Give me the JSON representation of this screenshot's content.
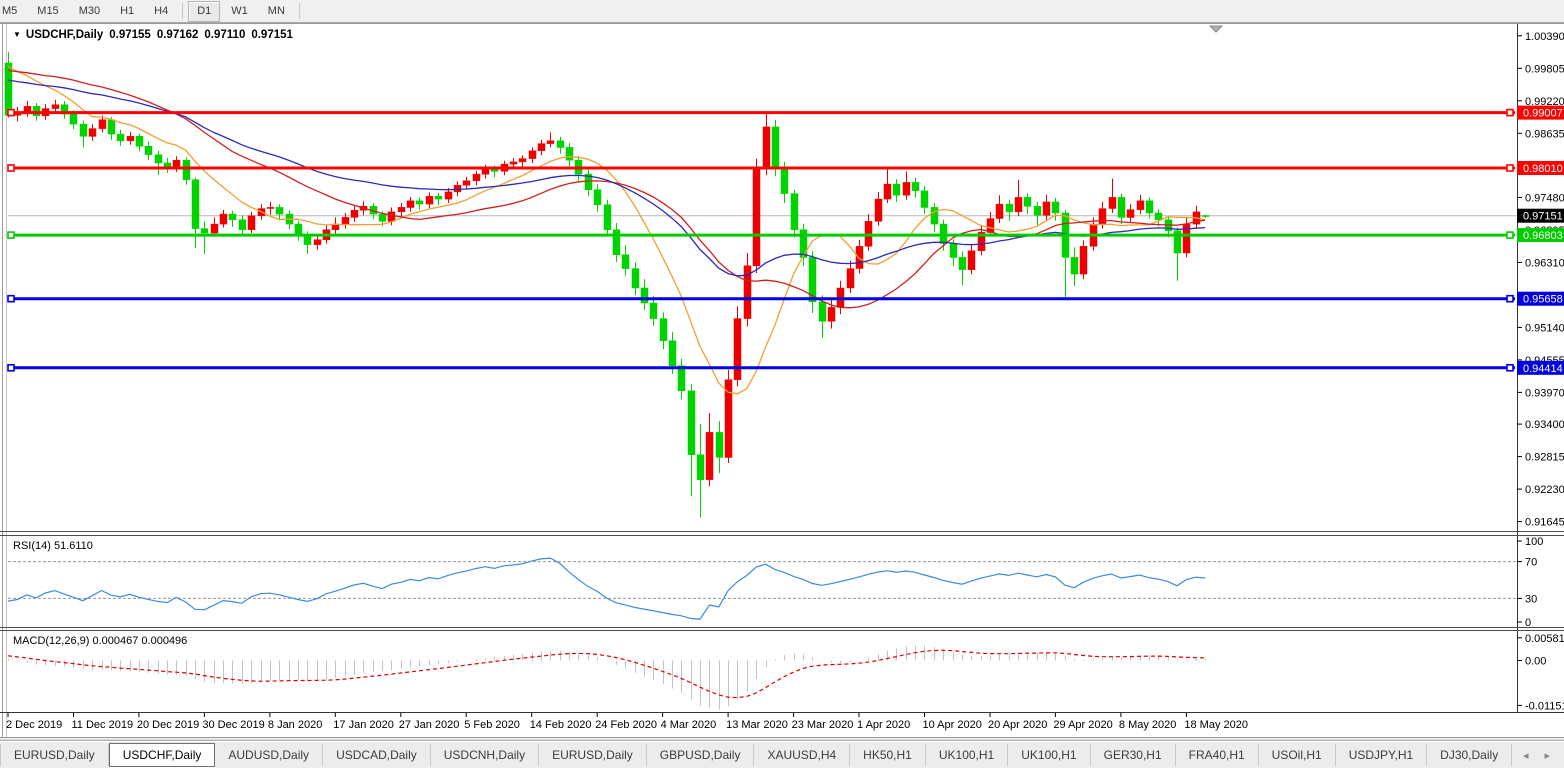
{
  "toolbar": {
    "timeframes": [
      "M5",
      "M15",
      "M30",
      "H1",
      "H4",
      "D1",
      "W1",
      "MN"
    ],
    "active": "D1"
  },
  "chart": {
    "title": {
      "symbol": "USDCHF,Daily",
      "open": "0.97155",
      "high": "0.97162",
      "low": "0.97110",
      "close": "0.97151"
    },
    "price_axis_ticks": [
      {
        "label": "1.00390",
        "price": 1.0039
      },
      {
        "label": "0.99805",
        "price": 0.99805
      },
      {
        "label": "0.99220",
        "price": 0.9922
      },
      {
        "label": "0.98635",
        "price": 0.98635
      },
      {
        "label": "0.97480",
        "price": 0.9748
      },
      {
        "label": "0.96895",
        "price": 0.96895
      },
      {
        "label": "0.96310",
        "price": 0.9631
      },
      {
        "label": "0.95140",
        "price": 0.9514
      },
      {
        "label": "0.94555",
        "price": 0.94555
      },
      {
        "label": "0.93970",
        "price": 0.9397
      },
      {
        "label": "0.93400",
        "price": 0.934
      },
      {
        "label": "0.92815",
        "price": 0.92815
      },
      {
        "label": "0.92230",
        "price": 0.9223
      },
      {
        "label": "0.91645",
        "price": 0.91645
      }
    ],
    "hlines": [
      {
        "label": "0.99007",
        "price": 0.99007,
        "color": "#fe0000"
      },
      {
        "label": "0.98010",
        "price": 0.9801,
        "color": "#fe0000"
      },
      {
        "label": "0.96803",
        "price": 0.96803,
        "color": "#00cc00"
      },
      {
        "label": "0.95658",
        "price": 0.95658,
        "color": "#0000e0"
      },
      {
        "label": "0.94414",
        "price": 0.94414,
        "color": "#0000e0"
      }
    ],
    "current_price": {
      "label": "0.97151",
      "price": 0.97151,
      "line_color": "#b8b8b8",
      "box_color": "#000000"
    }
  },
  "rsi": {
    "label": "RSI(14) 51.6110",
    "axis_labels": [
      "100",
      "70",
      "30",
      "0"
    ],
    "levels": [
      70,
      30
    ],
    "line_color": "#3c8bd9"
  },
  "macd": {
    "label": "MACD(12,26,9) 0.000467 0.000496",
    "axis": [
      {
        "label": "0.005818",
        "value": 0.005818
      },
      {
        "label": "0.00",
        "value": 0
      },
      {
        "label": "-0.011514",
        "value": -0.011514
      }
    ],
    "histogram_color": "#c2c2c2",
    "signal_color": "#e00000"
  },
  "date_axis": {
    "labels": [
      "2 Dec 2019",
      "11 Dec 2019",
      "20 Dec 2019",
      "30 Dec 2019",
      "8 Jan 2020",
      "17 Jan 2020",
      "27 Jan 2020",
      "5 Feb 2020",
      "14 Feb 2020",
      "24 Feb 2020",
      "4 Mar 2020",
      "13 Mar 2020",
      "23 Mar 2020",
      "1 Apr 2020",
      "10 Apr 2020",
      "20 Apr 2020",
      "29 Apr 2020",
      "8 May 2020",
      "18 May 2020"
    ],
    "candle_step": 7
  },
  "tabs": {
    "items": [
      "EURUSD,Daily",
      "USDCHF,Daily",
      "AUDUSD,Daily",
      "USDCAD,Daily",
      "USDCNH,Daily",
      "EURUSD,Daily",
      "GBPUSD,Daily",
      "XAUUSD,H4",
      "HK50,H1",
      "UK100,H1",
      "UK100,H1",
      "GER30,H1",
      "FRA40,H1",
      "USOil,H1",
      "USDJPY,H1",
      "DJ30,Daily"
    ],
    "active_index": 1,
    "nav_prev": "◂",
    "nav_next": "▸"
  },
  "chart_data": {
    "type": "candlestick",
    "symbol": "USDCHF",
    "timeframe": "Daily",
    "bull_color": "#ee0000",
    "bear_color": "#00d300",
    "note": "bull candles are red, bear candles are lime (CN convention)",
    "candles": [
      [
        0.999,
        1.001,
        0.9891,
        0.9896
      ],
      [
        0.9896,
        0.9911,
        0.9885,
        0.99
      ],
      [
        0.99,
        0.9922,
        0.9893,
        0.9912
      ],
      [
        0.9912,
        0.9918,
        0.9886,
        0.9895
      ],
      [
        0.9895,
        0.9916,
        0.9888,
        0.9908
      ],
      [
        0.9908,
        0.9924,
        0.99,
        0.9915
      ],
      [
        0.9915,
        0.9921,
        0.989,
        0.9898
      ],
      [
        0.9898,
        0.9905,
        0.9871,
        0.988
      ],
      [
        0.988,
        0.9886,
        0.9838,
        0.9858
      ],
      [
        0.9858,
        0.988,
        0.985,
        0.9872
      ],
      [
        0.9872,
        0.9896,
        0.9865,
        0.9888
      ],
      [
        0.9888,
        0.9893,
        0.9852,
        0.9862
      ],
      [
        0.9862,
        0.987,
        0.9841,
        0.985
      ],
      [
        0.985,
        0.9866,
        0.9843,
        0.9858
      ],
      [
        0.9858,
        0.9863,
        0.9831,
        0.984
      ],
      [
        0.984,
        0.9849,
        0.9815,
        0.9825
      ],
      [
        0.9825,
        0.9832,
        0.9788,
        0.981
      ],
      [
        0.981,
        0.9819,
        0.9792,
        0.98
      ],
      [
        0.98,
        0.9822,
        0.9794,
        0.9815
      ],
      [
        0.9815,
        0.982,
        0.9771,
        0.978
      ],
      [
        0.978,
        0.9784,
        0.9657,
        0.9692
      ],
      [
        0.9692,
        0.9705,
        0.9646,
        0.9684
      ],
      [
        0.9684,
        0.9712,
        0.9677,
        0.97
      ],
      [
        0.97,
        0.9726,
        0.9694,
        0.9718
      ],
      [
        0.9718,
        0.9724,
        0.9695,
        0.9708
      ],
      [
        0.9708,
        0.9716,
        0.9678,
        0.969
      ],
      [
        0.969,
        0.9722,
        0.9684,
        0.9715
      ],
      [
        0.9715,
        0.9736,
        0.9708,
        0.9728
      ],
      [
        0.9728,
        0.974,
        0.9717,
        0.973
      ],
      [
        0.973,
        0.9736,
        0.9707,
        0.9718
      ],
      [
        0.9718,
        0.9724,
        0.9691,
        0.97
      ],
      [
        0.97,
        0.9706,
        0.967,
        0.968
      ],
      [
        0.968,
        0.9687,
        0.9646,
        0.9663
      ],
      [
        0.9663,
        0.968,
        0.9654,
        0.9672
      ],
      [
        0.9672,
        0.9698,
        0.9665,
        0.969
      ],
      [
        0.969,
        0.9712,
        0.9683,
        0.97
      ],
      [
        0.97,
        0.972,
        0.9692,
        0.9712
      ],
      [
        0.9712,
        0.9732,
        0.9704,
        0.9725
      ],
      [
        0.9725,
        0.9741,
        0.9716,
        0.9732
      ],
      [
        0.9732,
        0.9738,
        0.9709,
        0.9718
      ],
      [
        0.9718,
        0.9723,
        0.9696,
        0.9705
      ],
      [
        0.9705,
        0.973,
        0.9698,
        0.9722
      ],
      [
        0.9722,
        0.9738,
        0.9714,
        0.973
      ],
      [
        0.973,
        0.9749,
        0.9722,
        0.9742
      ],
      [
        0.9742,
        0.9748,
        0.9726,
        0.9736
      ],
      [
        0.9736,
        0.9757,
        0.9729,
        0.975
      ],
      [
        0.975,
        0.9756,
        0.9734,
        0.9745
      ],
      [
        0.9745,
        0.9765,
        0.9738,
        0.9758
      ],
      [
        0.9758,
        0.9777,
        0.975,
        0.977
      ],
      [
        0.977,
        0.9785,
        0.9762,
        0.9778
      ],
      [
        0.9778,
        0.9796,
        0.977,
        0.979
      ],
      [
        0.979,
        0.9807,
        0.9782,
        0.98
      ],
      [
        0.98,
        0.9806,
        0.9784,
        0.9795
      ],
      [
        0.9795,
        0.9814,
        0.9788,
        0.9808
      ],
      [
        0.9808,
        0.9819,
        0.9799,
        0.9812
      ],
      [
        0.9812,
        0.9824,
        0.9801,
        0.9818
      ],
      [
        0.9818,
        0.9838,
        0.981,
        0.9832
      ],
      [
        0.9832,
        0.9852,
        0.9824,
        0.9845
      ],
      [
        0.9845,
        0.9865,
        0.9838,
        0.985
      ],
      [
        0.985,
        0.9857,
        0.9827,
        0.9838
      ],
      [
        0.9838,
        0.9846,
        0.9804,
        0.9815
      ],
      [
        0.9815,
        0.9822,
        0.9778,
        0.979
      ],
      [
        0.979,
        0.9798,
        0.975,
        0.9762
      ],
      [
        0.9762,
        0.9772,
        0.9722,
        0.9735
      ],
      [
        0.9735,
        0.9744,
        0.9678,
        0.969
      ],
      [
        0.969,
        0.9702,
        0.9632,
        0.9645
      ],
      [
        0.9645,
        0.9662,
        0.9607,
        0.962
      ],
      [
        0.962,
        0.9631,
        0.9572,
        0.9585
      ],
      [
        0.9585,
        0.9601,
        0.9545,
        0.9558
      ],
      [
        0.9558,
        0.957,
        0.9517,
        0.953
      ],
      [
        0.953,
        0.9541,
        0.9475,
        0.949
      ],
      [
        0.949,
        0.9506,
        0.943,
        0.9445
      ],
      [
        0.9445,
        0.9458,
        0.9385,
        0.94
      ],
      [
        0.94,
        0.9412,
        0.921,
        0.9285
      ],
      [
        0.9285,
        0.934,
        0.9172,
        0.924
      ],
      [
        0.924,
        0.936,
        0.9228,
        0.9325
      ],
      [
        0.9325,
        0.9345,
        0.9252,
        0.928
      ],
      [
        0.928,
        0.9438,
        0.927,
        0.942
      ],
      [
        0.942,
        0.9552,
        0.9408,
        0.953
      ],
      [
        0.953,
        0.9648,
        0.9516,
        0.9625
      ],
      [
        0.9625,
        0.9818,
        0.9612,
        0.98
      ],
      [
        0.98,
        0.9901,
        0.9788,
        0.9875
      ],
      [
        0.9875,
        0.9888,
        0.9786,
        0.98
      ],
      [
        0.98,
        0.9812,
        0.9738,
        0.9755
      ],
      [
        0.9755,
        0.9762,
        0.9676,
        0.969
      ],
      [
        0.969,
        0.9701,
        0.9624,
        0.964
      ],
      [
        0.964,
        0.9651,
        0.954,
        0.956
      ],
      [
        0.956,
        0.9572,
        0.9495,
        0.9525
      ],
      [
        0.9525,
        0.9565,
        0.9512,
        0.955
      ],
      [
        0.955,
        0.9598,
        0.9538,
        0.9585
      ],
      [
        0.9585,
        0.9634,
        0.9576,
        0.962
      ],
      [
        0.962,
        0.9672,
        0.9611,
        0.966
      ],
      [
        0.966,
        0.9718,
        0.9652,
        0.9705
      ],
      [
        0.9705,
        0.9758,
        0.9697,
        0.9745
      ],
      [
        0.9745,
        0.98,
        0.9738,
        0.9772
      ],
      [
        0.9772,
        0.9781,
        0.974,
        0.9752
      ],
      [
        0.9752,
        0.9795,
        0.9744,
        0.9775
      ],
      [
        0.9775,
        0.9784,
        0.9748,
        0.976
      ],
      [
        0.976,
        0.9768,
        0.9718,
        0.973
      ],
      [
        0.973,
        0.9738,
        0.9686,
        0.97
      ],
      [
        0.97,
        0.9708,
        0.9652,
        0.9665
      ],
      [
        0.9665,
        0.9673,
        0.9624,
        0.964
      ],
      [
        0.964,
        0.9651,
        0.959,
        0.9618
      ],
      [
        0.9618,
        0.9663,
        0.961,
        0.9652
      ],
      [
        0.9652,
        0.9697,
        0.9644,
        0.9685
      ],
      [
        0.9685,
        0.9722,
        0.9678,
        0.971
      ],
      [
        0.971,
        0.9752,
        0.9702,
        0.9736
      ],
      [
        0.9736,
        0.9744,
        0.9706,
        0.9722
      ],
      [
        0.9722,
        0.978,
        0.9714,
        0.9748
      ],
      [
        0.9748,
        0.9756,
        0.9718,
        0.9732
      ],
      [
        0.9732,
        0.974,
        0.9698,
        0.9716
      ],
      [
        0.9716,
        0.9753,
        0.9708,
        0.974
      ],
      [
        0.974,
        0.9747,
        0.9706,
        0.972
      ],
      [
        0.972,
        0.9726,
        0.9568,
        0.964
      ],
      [
        0.964,
        0.9658,
        0.9588,
        0.961
      ],
      [
        0.961,
        0.9671,
        0.9601,
        0.966
      ],
      [
        0.966,
        0.9712,
        0.9652,
        0.97
      ],
      [
        0.97,
        0.974,
        0.9692,
        0.9728
      ],
      [
        0.9728,
        0.9782,
        0.972,
        0.9748
      ],
      [
        0.9748,
        0.9755,
        0.97,
        0.9712
      ],
      [
        0.9712,
        0.9736,
        0.9704,
        0.9726
      ],
      [
        0.9726,
        0.9753,
        0.9718,
        0.9742
      ],
      [
        0.9742,
        0.9748,
        0.971,
        0.972
      ],
      [
        0.972,
        0.9727,
        0.9696,
        0.9708
      ],
      [
        0.9708,
        0.9715,
        0.9676,
        0.9688
      ],
      [
        0.9688,
        0.9694,
        0.9598,
        0.9648
      ],
      [
        0.9648,
        0.9712,
        0.964,
        0.97
      ],
      [
        0.97,
        0.9733,
        0.9692,
        0.9722
      ],
      [
        0.97155,
        0.97162,
        0.9711,
        0.97151
      ]
    ],
    "preamble_closes": [
      0.9872,
      0.988,
      0.9876,
      0.9885,
      0.989,
      0.9884,
      0.9892,
      0.9898,
      0.9893,
      0.99,
      0.9905,
      0.9898,
      0.9906,
      0.9912,
      0.9908,
      0.9915,
      0.991,
      0.9918,
      0.9922,
      0.9916,
      0.9924,
      0.993,
      0.9925,
      0.9932,
      0.9928,
      0.9936,
      0.994,
      0.9934,
      0.9942,
      0.9948,
      0.9944,
      0.995,
      0.9946,
      0.9954,
      0.9958,
      0.9952,
      0.996,
      0.9956,
      0.9964,
      0.9968,
      0.9962,
      0.997,
      0.9966,
      0.9974,
      0.9978,
      0.9972,
      0.998,
      0.9976,
      0.9984,
      0.9988,
      0.9982,
      0.999,
      0.9986,
      0.9992,
      0.9996,
      0.999,
      0.9998,
      0.9994,
      1.0,
      0.9996
    ],
    "overlays": [
      {
        "name": "ma-fast",
        "method": "sma",
        "period": 10,
        "color": "#f0a030"
      },
      {
        "name": "ma-mid",
        "method": "sma",
        "period": 25,
        "color": "#d02020"
      },
      {
        "name": "ma-slow",
        "method": "ema",
        "period": 40,
        "color": "#2b2bb8"
      }
    ],
    "indicators": [
      {
        "type": "rsi",
        "period": 14
      },
      {
        "type": "macd",
        "fast": 12,
        "slow": 26,
        "signal": 9
      }
    ]
  }
}
